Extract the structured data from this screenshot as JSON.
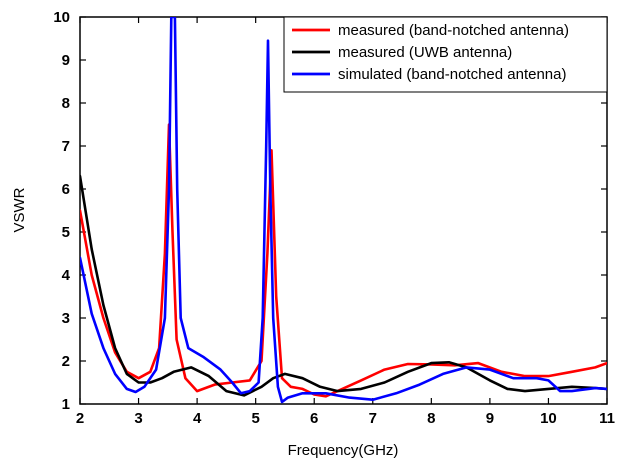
{
  "chart_data": {
    "type": "line",
    "xlabel": "Frequency(GHz)",
    "ylabel": "VSWR",
    "xlim": [
      2,
      11
    ],
    "ylim": [
      1,
      10
    ],
    "xticks": [
      2,
      3,
      4,
      5,
      6,
      7,
      8,
      9,
      10,
      11
    ],
    "yticks": [
      1,
      2,
      3,
      4,
      5,
      6,
      7,
      8,
      9,
      10
    ],
    "grid": false,
    "legend_position": "top-right",
    "series": [
      {
        "name": "measured (band-notched antenna)",
        "color": "#ff0000",
        "points": [
          [
            2.0,
            5.5
          ],
          [
            2.2,
            4.0
          ],
          [
            2.4,
            3.0
          ],
          [
            2.6,
            2.2
          ],
          [
            2.8,
            1.75
          ],
          [
            3.0,
            1.6
          ],
          [
            3.2,
            1.75
          ],
          [
            3.35,
            2.3
          ],
          [
            3.45,
            4.5
          ],
          [
            3.52,
            7.5
          ],
          [
            3.58,
            5.0
          ],
          [
            3.65,
            2.5
          ],
          [
            3.8,
            1.6
          ],
          [
            4.0,
            1.3
          ],
          [
            4.3,
            1.45
          ],
          [
            4.6,
            1.5
          ],
          [
            4.9,
            1.55
          ],
          [
            5.1,
            2.0
          ],
          [
            5.2,
            4.5
          ],
          [
            5.27,
            6.9
          ],
          [
            5.35,
            3.5
          ],
          [
            5.45,
            1.6
          ],
          [
            5.6,
            1.4
          ],
          [
            5.8,
            1.35
          ],
          [
            6.0,
            1.22
          ],
          [
            6.2,
            1.18
          ],
          [
            6.4,
            1.3
          ],
          [
            6.8,
            1.55
          ],
          [
            7.2,
            1.8
          ],
          [
            7.6,
            1.93
          ],
          [
            8.0,
            1.92
          ],
          [
            8.4,
            1.9
          ],
          [
            8.8,
            1.95
          ],
          [
            9.2,
            1.75
          ],
          [
            9.6,
            1.65
          ],
          [
            10.0,
            1.65
          ],
          [
            10.4,
            1.75
          ],
          [
            10.8,
            1.85
          ],
          [
            11.0,
            1.95
          ]
        ]
      },
      {
        "name": "measured (UWB antenna)",
        "color": "#000000",
        "points": [
          [
            2.0,
            6.3
          ],
          [
            2.2,
            4.6
          ],
          [
            2.4,
            3.3
          ],
          [
            2.6,
            2.3
          ],
          [
            2.8,
            1.7
          ],
          [
            3.0,
            1.5
          ],
          [
            3.2,
            1.5
          ],
          [
            3.4,
            1.6
          ],
          [
            3.6,
            1.75
          ],
          [
            3.9,
            1.85
          ],
          [
            4.2,
            1.65
          ],
          [
            4.5,
            1.3
          ],
          [
            4.8,
            1.2
          ],
          [
            5.1,
            1.4
          ],
          [
            5.3,
            1.6
          ],
          [
            5.5,
            1.7
          ],
          [
            5.8,
            1.6
          ],
          [
            6.1,
            1.4
          ],
          [
            6.4,
            1.3
          ],
          [
            6.8,
            1.35
          ],
          [
            7.2,
            1.5
          ],
          [
            7.6,
            1.75
          ],
          [
            8.0,
            1.95
          ],
          [
            8.3,
            1.97
          ],
          [
            8.6,
            1.85
          ],
          [
            9.0,
            1.55
          ],
          [
            9.3,
            1.35
          ],
          [
            9.6,
            1.3
          ],
          [
            10.0,
            1.35
          ],
          [
            10.4,
            1.4
          ],
          [
            10.8,
            1.37
          ],
          [
            11.0,
            1.35
          ]
        ]
      },
      {
        "name": "simulated (band-notched antenna)",
        "color": "#0000ff",
        "points": [
          [
            2.0,
            4.4
          ],
          [
            2.2,
            3.1
          ],
          [
            2.4,
            2.3
          ],
          [
            2.6,
            1.7
          ],
          [
            2.8,
            1.35
          ],
          [
            2.95,
            1.28
          ],
          [
            3.1,
            1.4
          ],
          [
            3.3,
            1.8
          ],
          [
            3.45,
            3.0
          ],
          [
            3.52,
            6.0
          ],
          [
            3.56,
            10.0
          ],
          [
            3.62,
            10.0
          ],
          [
            3.66,
            6.0
          ],
          [
            3.72,
            3.0
          ],
          [
            3.85,
            2.3
          ],
          [
            4.1,
            2.1
          ],
          [
            4.4,
            1.8
          ],
          [
            4.6,
            1.5
          ],
          [
            4.75,
            1.25
          ],
          [
            4.9,
            1.3
          ],
          [
            5.05,
            1.5
          ],
          [
            5.12,
            3.0
          ],
          [
            5.18,
            7.0
          ],
          [
            5.21,
            9.45
          ],
          [
            5.25,
            6.0
          ],
          [
            5.3,
            3.0
          ],
          [
            5.38,
            1.4
          ],
          [
            5.45,
            1.05
          ],
          [
            5.55,
            1.15
          ],
          [
            5.8,
            1.25
          ],
          [
            6.2,
            1.25
          ],
          [
            6.6,
            1.15
          ],
          [
            7.0,
            1.1
          ],
          [
            7.4,
            1.25
          ],
          [
            7.8,
            1.45
          ],
          [
            8.2,
            1.7
          ],
          [
            8.6,
            1.85
          ],
          [
            9.0,
            1.8
          ],
          [
            9.4,
            1.6
          ],
          [
            9.8,
            1.6
          ],
          [
            10.0,
            1.55
          ],
          [
            10.2,
            1.3
          ],
          [
            10.4,
            1.3
          ],
          [
            10.8,
            1.37
          ],
          [
            11.0,
            1.35
          ]
        ]
      }
    ]
  }
}
